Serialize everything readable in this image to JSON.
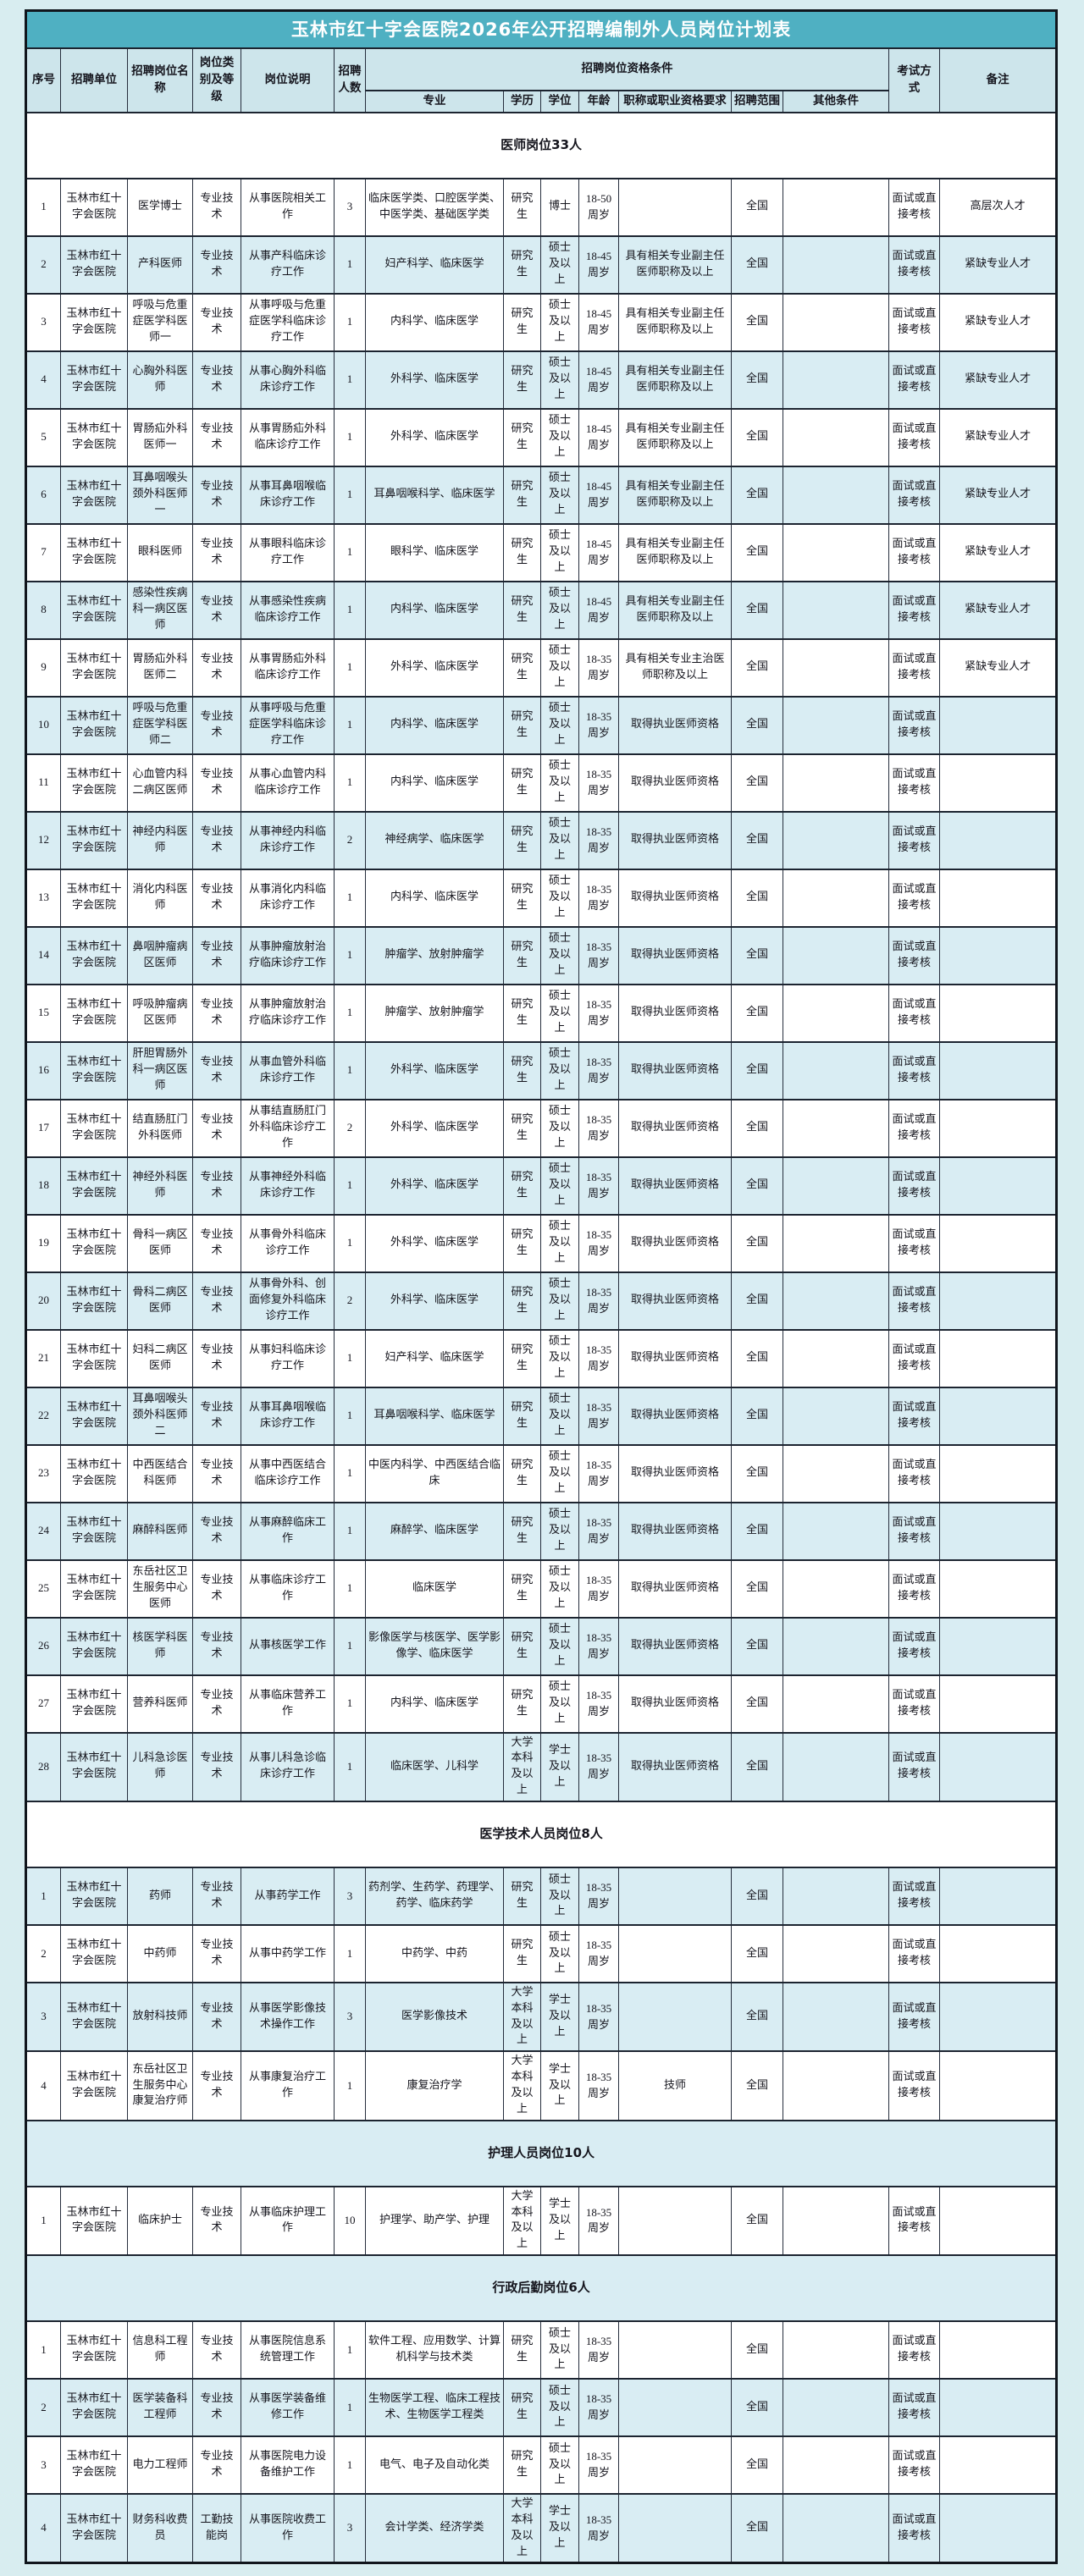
{
  "page": {
    "title": "玉林市红十字会医院2026年公开招聘编制外人员岗位计划表"
  },
  "header": {
    "seq": "序号",
    "unit": "招聘单位",
    "position": "招聘岗位名称",
    "category": "岗位类别及等级",
    "duty": "岗位说明",
    "count": "招聘人数",
    "group": "招聘岗位资格条件",
    "major": "专业",
    "education": "学历",
    "degree": "学位",
    "age": "年龄",
    "qualification": "职称或职业资格要求",
    "scope": "招聘范围",
    "other": "其他条件",
    "exam": "考试方式",
    "remark": "备注"
  },
  "defaults": {
    "unit": "玉林市红十字会医院",
    "scope": "全国",
    "exam": "面试或直接考核"
  },
  "colors": {
    "title_bar": "#4fb0c2",
    "header_bg": "#cde5eb",
    "shaded_row": "#d9edf3",
    "page_bg": "#d8edf0",
    "border": "#1c2430"
  },
  "sections": [
    {
      "title": "医师岗位33人",
      "shaded": false,
      "rows": [
        {
          "no": "1",
          "position": "医学博士",
          "category": "专业技术",
          "duty": "从事医院相关工作",
          "count": "3",
          "major": "临床医学类、口腔医学类、中医学类、基础医学类",
          "education": "研究生",
          "degree": "博士",
          "age": "18-50周岁",
          "qualification": "",
          "other": "",
          "remark": "高层次人才",
          "shaded": false
        },
        {
          "no": "2",
          "position": "产科医师",
          "category": "专业技术",
          "duty": "从事产科临床诊疗工作",
          "count": "1",
          "major": "妇产科学、临床医学",
          "education": "研究生",
          "degree": "硕士及以上",
          "age": "18-45周岁",
          "qualification": "具有相关专业副主任医师职称及以上",
          "other": "",
          "remark": "紧缺专业人才",
          "shaded": true
        },
        {
          "no": "3",
          "position": "呼吸与危重症医学科医师一",
          "category": "专业技术",
          "duty": "从事呼吸与危重症医学科临床诊疗工作",
          "count": "1",
          "major": "内科学、临床医学",
          "education": "研究生",
          "degree": "硕士及以上",
          "age": "18-45周岁",
          "qualification": "具有相关专业副主任医师职称及以上",
          "other": "",
          "remark": "紧缺专业人才",
          "shaded": false
        },
        {
          "no": "4",
          "position": "心胸外科医师",
          "category": "专业技术",
          "duty": "从事心胸外科临床诊疗工作",
          "count": "1",
          "major": "外科学、临床医学",
          "education": "研究生",
          "degree": "硕士及以上",
          "age": "18-45周岁",
          "qualification": "具有相关专业副主任医师职称及以上",
          "other": "",
          "remark": "紧缺专业人才",
          "shaded": true
        },
        {
          "no": "5",
          "position": "胃肠疝外科医师一",
          "category": "专业技术",
          "duty": "从事胃肠疝外科临床诊疗工作",
          "count": "1",
          "major": "外科学、临床医学",
          "education": "研究生",
          "degree": "硕士及以上",
          "age": "18-45周岁",
          "qualification": "具有相关专业副主任医师职称及以上",
          "other": "",
          "remark": "紧缺专业人才",
          "shaded": false
        },
        {
          "no": "6",
          "position": "耳鼻咽喉头颈外科医师一",
          "category": "专业技术",
          "duty": "从事耳鼻咽喉临床诊疗工作",
          "count": "1",
          "major": "耳鼻咽喉科学、临床医学",
          "education": "研究生",
          "degree": "硕士及以上",
          "age": "18-45周岁",
          "qualification": "具有相关专业副主任医师职称及以上",
          "other": "",
          "remark": "紧缺专业人才",
          "shaded": true
        },
        {
          "no": "7",
          "position": "眼科医师",
          "category": "专业技术",
          "duty": "从事眼科临床诊疗工作",
          "count": "1",
          "major": "眼科学、临床医学",
          "education": "研究生",
          "degree": "硕士及以上",
          "age": "18-45周岁",
          "qualification": "具有相关专业副主任医师职称及以上",
          "other": "",
          "remark": "紧缺专业人才",
          "shaded": false
        },
        {
          "no": "8",
          "position": "感染性疾病科一病区医师",
          "category": "专业技术",
          "duty": "从事感染性疾病临床诊疗工作",
          "count": "1",
          "major": "内科学、临床医学",
          "education": "研究生",
          "degree": "硕士及以上",
          "age": "18-45周岁",
          "qualification": "具有相关专业副主任医师职称及以上",
          "other": "",
          "remark": "紧缺专业人才",
          "shaded": true
        },
        {
          "no": "9",
          "position": "胃肠疝外科医师二",
          "category": "专业技术",
          "duty": "从事胃肠疝外科临床诊疗工作",
          "count": "1",
          "major": "外科学、临床医学",
          "education": "研究生",
          "degree": "硕士及以上",
          "age": "18-35周岁",
          "qualification": "具有相关专业主治医师职称及以上",
          "other": "",
          "remark": "紧缺专业人才",
          "shaded": false
        },
        {
          "no": "10",
          "position": "呼吸与危重症医学科医师二",
          "category": "专业技术",
          "duty": "从事呼吸与危重症医学科临床诊疗工作",
          "count": "1",
          "major": "内科学、临床医学",
          "education": "研究生",
          "degree": "硕士及以上",
          "age": "18-35周岁",
          "qualification": "取得执业医师资格",
          "other": "",
          "remark": "",
          "shaded": true
        },
        {
          "no": "11",
          "position": "心血管内科二病区医师",
          "category": "专业技术",
          "duty": "从事心血管内科临床诊疗工作",
          "count": "1",
          "major": "内科学、临床医学",
          "education": "研究生",
          "degree": "硕士及以上",
          "age": "18-35周岁",
          "qualification": "取得执业医师资格",
          "other": "",
          "remark": "",
          "shaded": false
        },
        {
          "no": "12",
          "position": "神经内科医师",
          "category": "专业技术",
          "duty": "从事神经内科临床诊疗工作",
          "count": "2",
          "major": "神经病学、临床医学",
          "education": "研究生",
          "degree": "硕士及以上",
          "age": "18-35周岁",
          "qualification": "取得执业医师资格",
          "other": "",
          "remark": "",
          "shaded": true
        },
        {
          "no": "13",
          "position": "消化内科医师",
          "category": "专业技术",
          "duty": "从事消化内科临床诊疗工作",
          "count": "1",
          "major": "内科学、临床医学",
          "education": "研究生",
          "degree": "硕士及以上",
          "age": "18-35周岁",
          "qualification": "取得执业医师资格",
          "other": "",
          "remark": "",
          "shaded": false
        },
        {
          "no": "14",
          "position": "鼻咽肿瘤病区医师",
          "category": "专业技术",
          "duty": "从事肿瘤放射治疗临床诊疗工作",
          "count": "1",
          "major": "肿瘤学、放射肿瘤学",
          "education": "研究生",
          "degree": "硕士及以上",
          "age": "18-35周岁",
          "qualification": "取得执业医师资格",
          "other": "",
          "remark": "",
          "shaded": true
        },
        {
          "no": "15",
          "position": "呼吸肿瘤病区医师",
          "category": "专业技术",
          "duty": "从事肿瘤放射治疗临床诊疗工作",
          "count": "1",
          "major": "肿瘤学、放射肿瘤学",
          "education": "研究生",
          "degree": "硕士及以上",
          "age": "18-35周岁",
          "qualification": "取得执业医师资格",
          "other": "",
          "remark": "",
          "shaded": false
        },
        {
          "no": "16",
          "position": "肝胆胃肠外科一病区医师",
          "category": "专业技术",
          "duty": "从事血管外科临床诊疗工作",
          "count": "1",
          "major": "外科学、临床医学",
          "education": "研究生",
          "degree": "硕士及以上",
          "age": "18-35周岁",
          "qualification": "取得执业医师资格",
          "other": "",
          "remark": "",
          "shaded": true
        },
        {
          "no": "17",
          "position": "结直肠肛门外科医师",
          "category": "专业技术",
          "duty": "从事结直肠肛门外科临床诊疗工作",
          "count": "2",
          "major": "外科学、临床医学",
          "education": "研究生",
          "degree": "硕士及以上",
          "age": "18-35周岁",
          "qualification": "取得执业医师资格",
          "other": "",
          "remark": "",
          "shaded": false
        },
        {
          "no": "18",
          "position": "神经外科医师",
          "category": "专业技术",
          "duty": "从事神经外科临床诊疗工作",
          "count": "1",
          "major": "外科学、临床医学",
          "education": "研究生",
          "degree": "硕士及以上",
          "age": "18-35周岁",
          "qualification": "取得执业医师资格",
          "other": "",
          "remark": "",
          "shaded": true
        },
        {
          "no": "19",
          "position": "骨科一病区医师",
          "category": "专业技术",
          "duty": "从事骨外科临床诊疗工作",
          "count": "1",
          "major": "外科学、临床医学",
          "education": "研究生",
          "degree": "硕士及以上",
          "age": "18-35周岁",
          "qualification": "取得执业医师资格",
          "other": "",
          "remark": "",
          "shaded": false
        },
        {
          "no": "20",
          "position": "骨科二病区医师",
          "category": "专业技术",
          "duty": "从事骨外科、创面修复外科临床诊疗工作",
          "count": "2",
          "major": "外科学、临床医学",
          "education": "研究生",
          "degree": "硕士及以上",
          "age": "18-35周岁",
          "qualification": "取得执业医师资格",
          "other": "",
          "remark": "",
          "shaded": true
        },
        {
          "no": "21",
          "position": "妇科二病区医师",
          "category": "专业技术",
          "duty": "从事妇科临床诊疗工作",
          "count": "1",
          "major": "妇产科学、临床医学",
          "education": "研究生",
          "degree": "硕士及以上",
          "age": "18-35周岁",
          "qualification": "取得执业医师资格",
          "other": "",
          "remark": "",
          "shaded": false
        },
        {
          "no": "22",
          "position": "耳鼻咽喉头颈外科医师二",
          "category": "专业技术",
          "duty": "从事耳鼻咽喉临床诊疗工作",
          "count": "1",
          "major": "耳鼻咽喉科学、临床医学",
          "education": "研究生",
          "degree": "硕士及以上",
          "age": "18-35周岁",
          "qualification": "取得执业医师资格",
          "other": "",
          "remark": "",
          "shaded": true
        },
        {
          "no": "23",
          "position": "中西医结合科医师",
          "category": "专业技术",
          "duty": "从事中西医结合临床诊疗工作",
          "count": "1",
          "major": "中医内科学、中西医结合临床",
          "education": "研究生",
          "degree": "硕士及以上",
          "age": "18-35周岁",
          "qualification": "取得执业医师资格",
          "other": "",
          "remark": "",
          "shaded": false
        },
        {
          "no": "24",
          "position": "麻醉科医师",
          "category": "专业技术",
          "duty": "从事麻醉临床工作",
          "count": "1",
          "major": "麻醉学、临床医学",
          "education": "研究生",
          "degree": "硕士及以上",
          "age": "18-35周岁",
          "qualification": "取得执业医师资格",
          "other": "",
          "remark": "",
          "shaded": true
        },
        {
          "no": "25",
          "position": "东岳社区卫生服务中心医师",
          "category": "专业技术",
          "duty": "从事临床诊疗工作",
          "count": "1",
          "major": "临床医学",
          "education": "研究生",
          "degree": "硕士及以上",
          "age": "18-35周岁",
          "qualification": "取得执业医师资格",
          "other": "",
          "remark": "",
          "shaded": false
        },
        {
          "no": "26",
          "position": "核医学科医师",
          "category": "专业技术",
          "duty": "从事核医学工作",
          "count": "1",
          "major": "影像医学与核医学、医学影像学、临床医学",
          "education": "研究生",
          "degree": "硕士及以上",
          "age": "18-35周岁",
          "qualification": "取得执业医师资格",
          "other": "",
          "remark": "",
          "shaded": true
        },
        {
          "no": "27",
          "position": "营养科医师",
          "category": "专业技术",
          "duty": "从事临床营养工作",
          "count": "1",
          "major": "内科学、临床医学",
          "education": "研究生",
          "degree": "硕士及以上",
          "age": "18-35周岁",
          "qualification": "取得执业医师资格",
          "other": "",
          "remark": "",
          "shaded": false
        },
        {
          "no": "28",
          "position": "儿科急诊医师",
          "category": "专业技术",
          "duty": "从事儿科急诊临床诊疗工作",
          "count": "1",
          "major": "临床医学、儿科学",
          "education": "大学本科及以上",
          "degree": "学士及以上",
          "age": "18-35周岁",
          "qualification": "取得执业医师资格",
          "other": "",
          "remark": "",
          "shaded": true
        }
      ]
    },
    {
      "title": "医学技术人员岗位8人",
      "shaded": false,
      "rows": [
        {
          "no": "1",
          "position": "药师",
          "category": "专业技术",
          "duty": "从事药学工作",
          "count": "3",
          "major": "药剂学、生药学、药理学、药学、临床药学",
          "education": "研究生",
          "degree": "硕士及以上",
          "age": "18-35周岁",
          "qualification": "",
          "other": "",
          "remark": "",
          "shaded": true
        },
        {
          "no": "2",
          "position": "中药师",
          "category": "专业技术",
          "duty": "从事中药学工作",
          "count": "1",
          "major": "中药学、中药",
          "education": "研究生",
          "degree": "硕士及以上",
          "age": "18-35周岁",
          "qualification": "",
          "other": "",
          "remark": "",
          "shaded": false
        },
        {
          "no": "3",
          "position": "放射科技师",
          "category": "专业技术",
          "duty": "从事医学影像技术操作工作",
          "count": "3",
          "major": "医学影像技术",
          "education": "大学本科及以上",
          "degree": "学士及以上",
          "age": "18-35周岁",
          "qualification": "",
          "other": "",
          "remark": "",
          "shaded": true
        },
        {
          "no": "4",
          "position": "东岳社区卫生服务中心康复治疗师",
          "category": "专业技术",
          "duty": "从事康复治疗工作",
          "count": "1",
          "major": "康复治疗学",
          "education": "大学本科及以上",
          "degree": "学士及以上",
          "age": "18-35周岁",
          "qualification": "技师",
          "other": "",
          "remark": "",
          "shaded": false
        }
      ]
    },
    {
      "title": "护理人员岗位10人",
      "shaded": true,
      "rows": [
        {
          "no": "1",
          "position": "临床护士",
          "category": "专业技术",
          "duty": "从事临床护理工作",
          "count": "10",
          "major": "护理学、助产学、护理",
          "education": "大学本科及以上",
          "degree": "学士及以上",
          "age": "18-35周岁",
          "qualification": "",
          "other": "",
          "remark": "",
          "shaded": false
        }
      ]
    },
    {
      "title": "行政后勤岗位6人",
      "shaded": true,
      "rows": [
        {
          "no": "1",
          "position": "信息科工程师",
          "category": "专业技术",
          "duty": "从事医院信息系统管理工作",
          "count": "1",
          "major": "软件工程、应用数学、计算机科学与技术类",
          "education": "研究生",
          "degree": "硕士及以上",
          "age": "18-35周岁",
          "qualification": "",
          "other": "",
          "remark": "",
          "shaded": false
        },
        {
          "no": "2",
          "position": "医学装备科工程师",
          "category": "专业技术",
          "duty": "从事医学装备维修工作",
          "count": "1",
          "major": "生物医学工程、临床工程技术、生物医学工程类",
          "education": "研究生",
          "degree": "硕士及以上",
          "age": "18-35周岁",
          "qualification": "",
          "other": "",
          "remark": "",
          "shaded": true
        },
        {
          "no": "3",
          "position": "电力工程师",
          "category": "专业技术",
          "duty": "从事医院电力设备维护工作",
          "count": "1",
          "major": "电气、电子及自动化类",
          "education": "研究生",
          "degree": "硕士及以上",
          "age": "18-35周岁",
          "qualification": "",
          "other": "",
          "remark": "",
          "shaded": false
        },
        {
          "no": "4",
          "position": "财务科收费员",
          "category": "工勤技能岗",
          "duty": "从事医院收费工作",
          "count": "3",
          "major": "会计学类、经济学类",
          "education": "大学本科及以上",
          "degree": "学士及以上",
          "age": "18-35周岁",
          "qualification": "",
          "other": "",
          "remark": "",
          "shaded": true
        }
      ]
    }
  ]
}
